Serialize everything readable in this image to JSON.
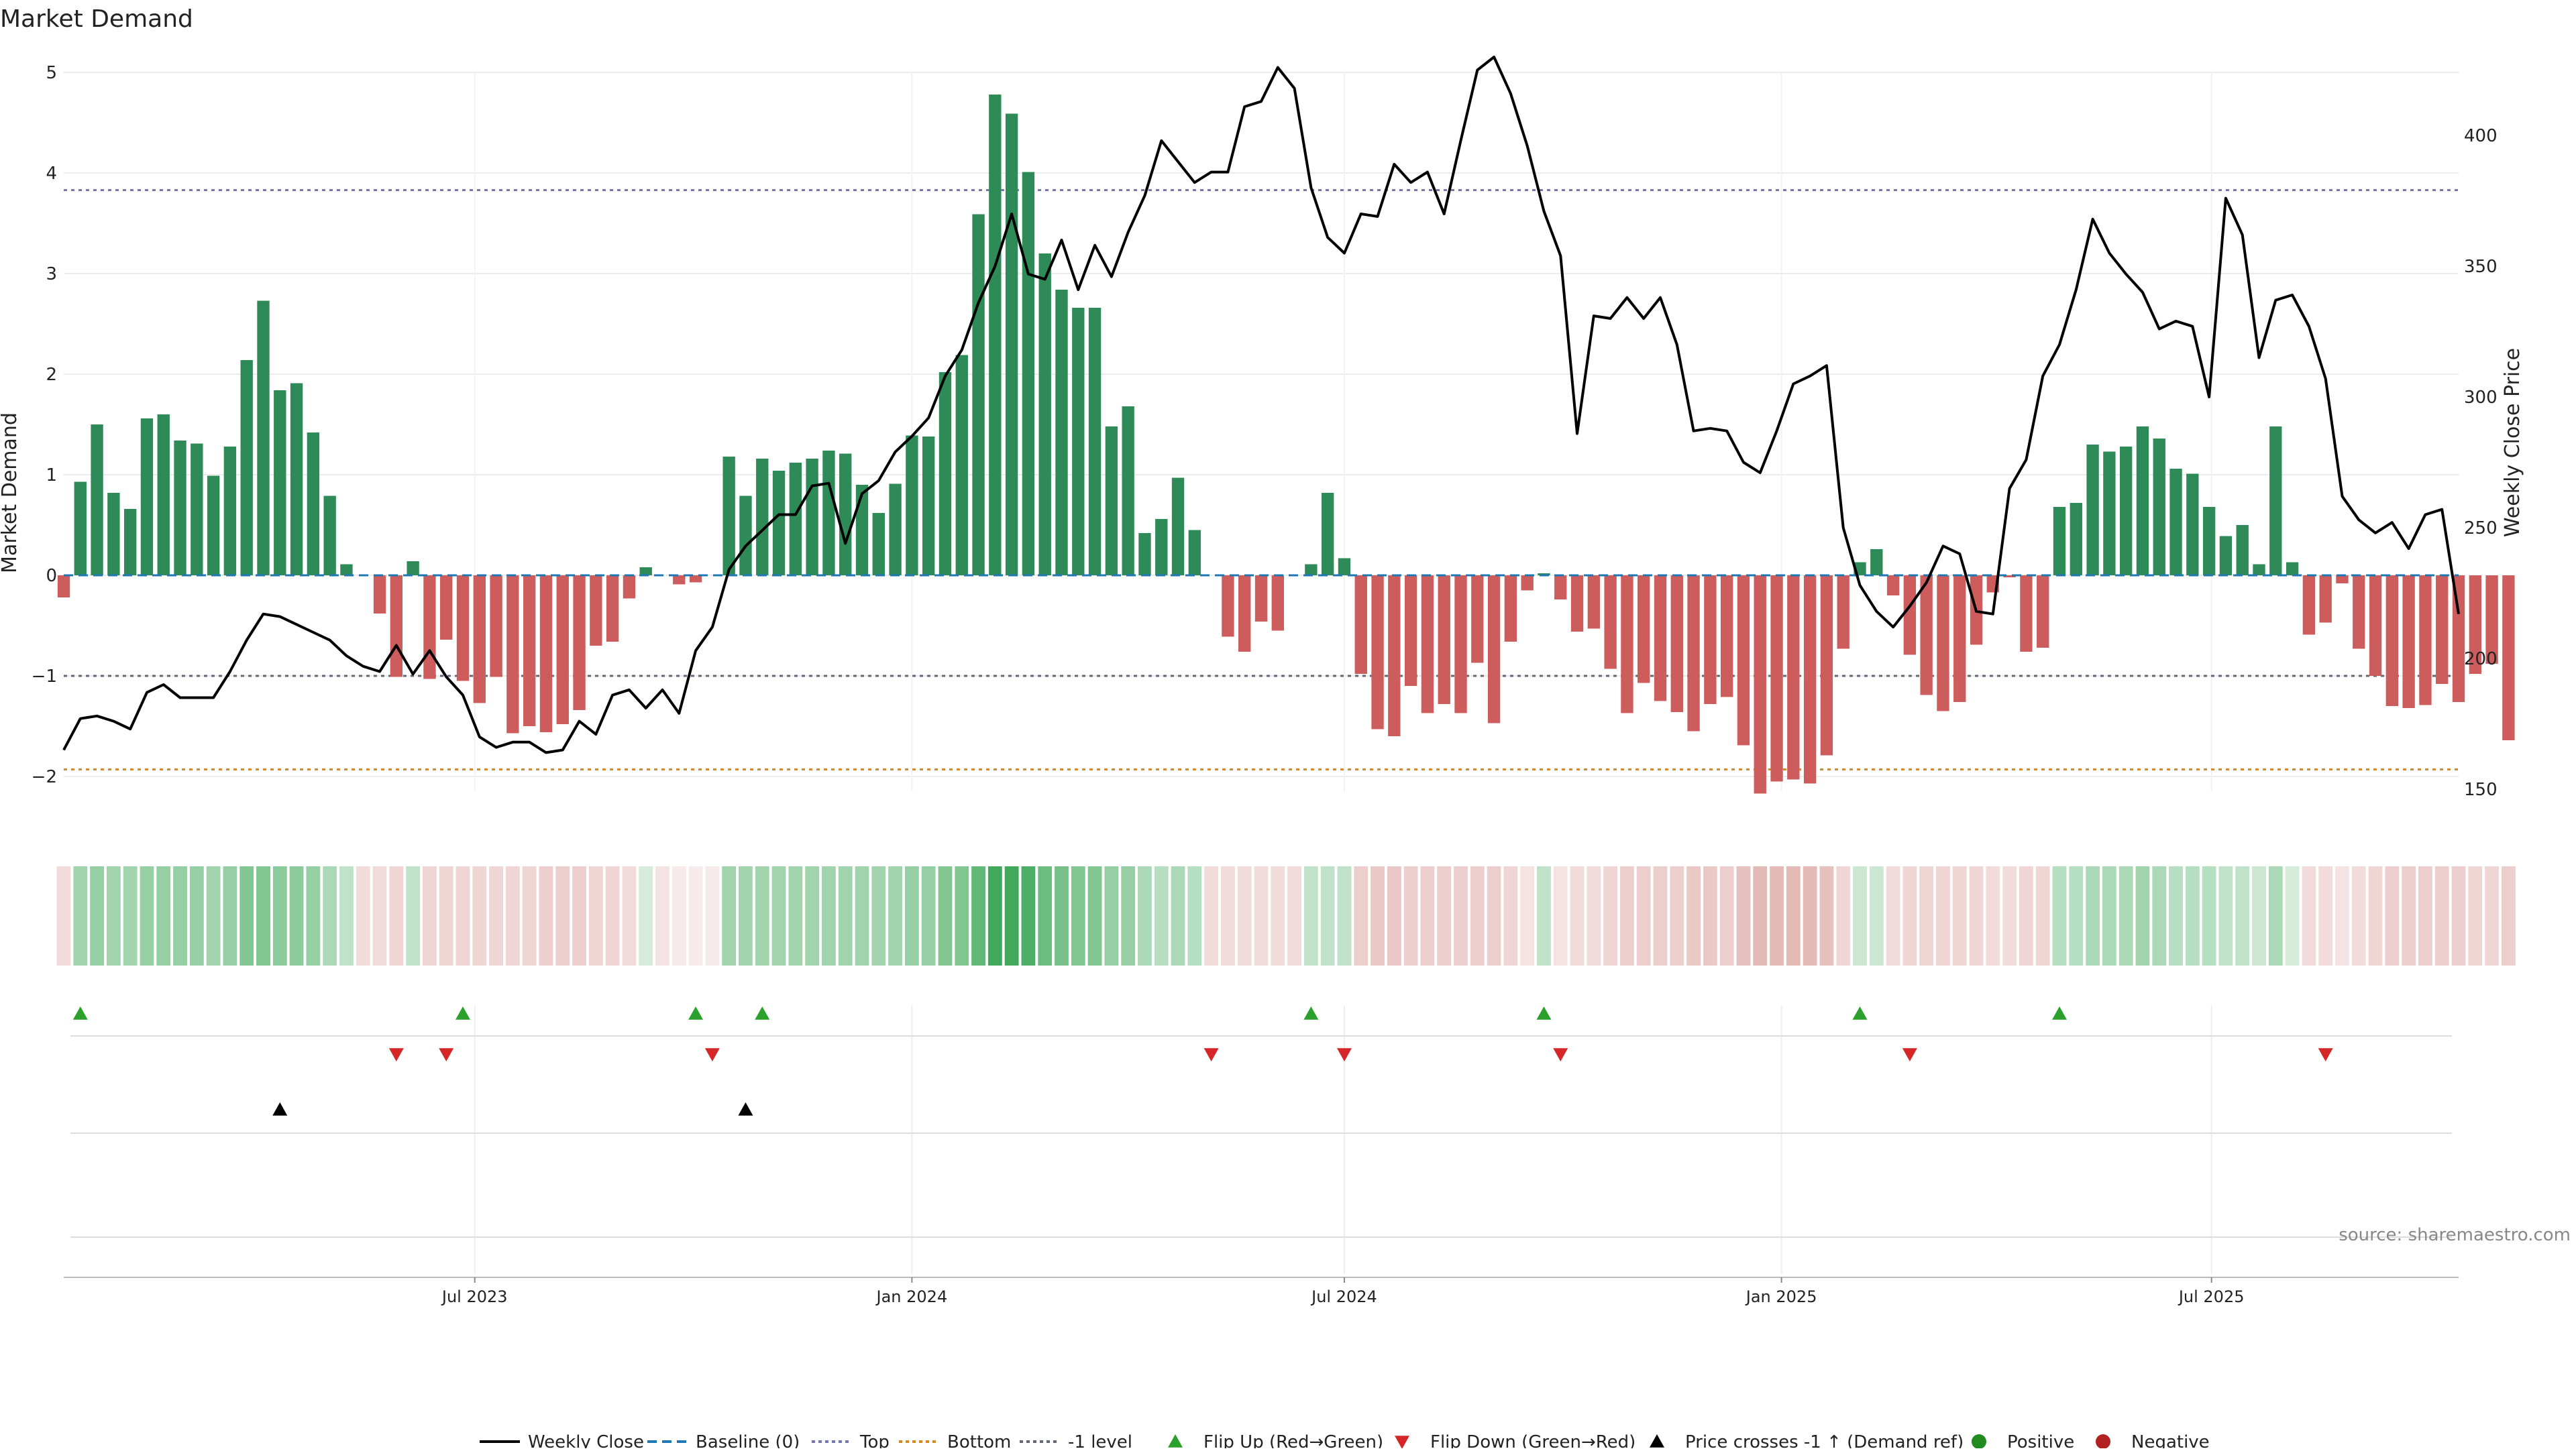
{
  "chart_data": {
    "type": "bar",
    "title": "Market Demand",
    "ylabel": "Market Demand",
    "y2label": "Weekly Close Price",
    "ylim": [
      -2.6,
      5.0
    ],
    "y2lim": [
      142,
      424
    ],
    "yticks": [
      "5",
      "4",
      "3",
      "2",
      "1",
      "0",
      "−1",
      "−2"
    ],
    "y2ticks": [
      "400",
      "350",
      "300",
      "250",
      "200",
      "150"
    ],
    "x_range": [
      "2023-01-09",
      "2025-10-13"
    ],
    "xticks": [
      {
        "date": "2023-07-01",
        "label": "Jul 2023"
      },
      {
        "date": "2024-01-01",
        "label": "Jan 2024"
      },
      {
        "date": "2024-07-01",
        "label": "Jul 2024"
      },
      {
        "date": "2025-01-01",
        "label": "Jan 2025"
      },
      {
        "date": "2025-07-01",
        "label": "Jul 2025"
      }
    ],
    "levels": {
      "top": 3.83,
      "bottom": -1.93,
      "minus_one": -1.0,
      "baseline": 0
    },
    "week_start": "2023-01-09",
    "demand": [
      -0.22,
      0.93,
      1.5,
      0.82,
      0.66,
      1.56,
      1.6,
      1.34,
      1.31,
      0.99,
      1.28,
      2.14,
      2.73,
      1.84,
      1.91,
      1.42,
      0.79,
      0.11,
      0,
      -0.38,
      -1.01,
      0.14,
      -1.03,
      -0.64,
      -1.05,
      -1.27,
      -1.01,
      -1.57,
      -1.5,
      -1.56,
      -1.48,
      -1.34,
      -0.7,
      -0.66,
      -0.23,
      0.08,
      0,
      -0.09,
      -0.07,
      0,
      1.18,
      0.79,
      1.16,
      1.04,
      1.12,
      1.16,
      1.24,
      1.21,
      0.9,
      0.62,
      0.91,
      1.39,
      1.38,
      2.02,
      2.19,
      3.59,
      4.78,
      4.59,
      4.01,
      3.2,
      2.84,
      2.66,
      2.66,
      1.48,
      1.68,
      0.42,
      0.56,
      0.97,
      0.45,
      0,
      -0.61,
      -0.76,
      -0.46,
      -0.55,
      0,
      0.11,
      0.82,
      0.17,
      -0.98,
      -1.53,
      -1.6,
      -1.1,
      -1.37,
      -1.28,
      -1.37,
      -0.87,
      -1.47,
      -0.66,
      -0.15,
      0.02,
      -0.24,
      -0.56,
      -0.53,
      -0.93,
      -1.37,
      -1.07,
      -1.25,
      -1.36,
      -1.55,
      -1.28,
      -1.21,
      -1.69,
      -2.17,
      -2.05,
      -2.03,
      -2.07,
      -1.79,
      -0.73,
      0.13,
      0.26,
      -0.2,
      -0.79,
      -1.19,
      -1.35,
      -1.26,
      -0.69,
      -0.17,
      -0.02,
      -0.76,
      -0.72,
      0.68,
      0.72,
      1.3,
      1.23,
      1.28,
      1.48,
      1.36,
      1.06,
      1.01,
      0.68,
      0.39,
      0.5,
      0.11,
      1.48,
      0.13,
      -0.59,
      -0.47,
      -0.08,
      -0.73,
      -1.0,
      -1.3,
      -1.32,
      -1.29,
      -1.08,
      -1.26,
      -0.98,
      -0.88,
      -1.64
    ],
    "close": [
      165,
      177,
      178,
      176,
      173,
      187,
      190,
      185,
      185,
      185,
      195,
      207,
      217,
      216,
      213,
      210,
      207,
      201,
      197,
      195,
      205,
      194,
      203,
      193,
      186,
      170,
      166,
      168,
      168,
      164,
      165,
      176,
      171,
      186,
      188,
      181,
      188,
      179,
      203,
      212,
      234,
      243,
      249,
      255,
      255,
      266,
      267,
      244,
      263,
      268,
      279,
      285,
      292,
      308,
      318,
      336,
      350,
      370,
      347,
      345,
      360,
      341,
      358,
      346,
      363,
      377,
      398,
      390,
      382,
      386,
      386,
      411,
      413,
      426,
      418,
      380,
      361,
      355,
      370,
      369,
      389,
      382,
      386,
      370,
      398,
      425,
      430,
      416,
      396,
      371,
      354,
      286,
      331,
      330,
      338,
      330,
      338,
      320,
      287,
      288,
      287,
      275,
      271,
      287,
      305,
      308,
      312,
      250,
      228,
      218,
      212,
      220,
      229,
      243,
      240,
      218,
      217,
      265,
      276,
      308,
      320,
      341,
      368,
      355,
      347,
      340,
      326,
      329,
      327,
      300,
      376,
      362,
      315,
      337,
      339,
      327,
      307,
      262,
      253,
      248,
      252,
      242,
      255,
      257,
      217
    ],
    "heat_intensity": [
      0.25,
      0.45,
      0.5,
      0.45,
      0.45,
      0.5,
      0.5,
      0.5,
      0.5,
      0.45,
      0.5,
      0.6,
      0.6,
      0.55,
      0.55,
      0.5,
      0.4,
      0.3,
      0.25,
      0.25,
      0.3,
      0.3,
      0.3,
      0.3,
      0.3,
      0.3,
      0.3,
      0.3,
      0.3,
      0.35,
      0.35,
      0.35,
      0.3,
      0.3,
      0.25,
      0.2,
      0.2,
      0.15,
      0.15,
      0.15,
      0.45,
      0.45,
      0.45,
      0.45,
      0.45,
      0.45,
      0.45,
      0.45,
      0.45,
      0.45,
      0.45,
      0.5,
      0.5,
      0.6,
      0.6,
      0.75,
      0.9,
      0.9,
      0.85,
      0.7,
      0.65,
      0.6,
      0.6,
      0.5,
      0.5,
      0.4,
      0.35,
      0.4,
      0.35,
      0.25,
      0.25,
      0.25,
      0.25,
      0.25,
      0.25,
      0.3,
      0.3,
      0.3,
      0.35,
      0.4,
      0.4,
      0.35,
      0.35,
      0.35,
      0.35,
      0.35,
      0.35,
      0.3,
      0.2,
      0.3,
      0.2,
      0.25,
      0.25,
      0.3,
      0.35,
      0.35,
      0.35,
      0.35,
      0.4,
      0.4,
      0.35,
      0.45,
      0.5,
      0.5,
      0.5,
      0.5,
      0.45,
      0.3,
      0.25,
      0.25,
      0.25,
      0.3,
      0.3,
      0.3,
      0.3,
      0.3,
      0.25,
      0.25,
      0.3,
      0.3,
      0.35,
      0.35,
      0.4,
      0.4,
      0.4,
      0.45,
      0.4,
      0.35,
      0.35,
      0.35,
      0.3,
      0.3,
      0.25,
      0.4,
      0.2,
      0.25,
      0.25,
      0.2,
      0.25,
      0.3,
      0.35,
      0.35,
      0.35,
      0.35,
      0.35,
      0.3,
      0.3,
      0.35
    ],
    "flip_up": [
      "2023-01-16",
      "2023-06-26",
      "2023-10-02",
      "2023-10-30",
      "2024-06-17",
      "2024-09-23",
      "2025-02-03",
      "2025-04-28"
    ],
    "flip_down": [
      "2023-05-29",
      "2023-06-19",
      "2023-10-09",
      "2024-05-06",
      "2024-07-01",
      "2024-09-30",
      "2025-02-24",
      "2025-08-18"
    ],
    "price_cross_minus1_up": [
      "2023-04-10",
      "2023-10-23"
    ],
    "colors": {
      "positive": "#2e8b57",
      "negative": "#cd5c5c",
      "line": "#000000",
      "top": "#7777aa",
      "bottom": "#d08a30",
      "minus_one": "#666677",
      "baseline": "#1f77b4",
      "flip_up": "#2ca02c",
      "flip_down": "#d62728",
      "cross": "#000000",
      "positive_legend": "#228b22",
      "negative_legend": "#b22222",
      "heat_green": "#2ea04a",
      "heat_red": "#c9756f"
    },
    "legend": {
      "position": "bottom-center",
      "items": [
        {
          "label": "Weekly Close",
          "icon": "line-solid"
        },
        {
          "label": "Baseline (0)",
          "icon": "line-dashed"
        },
        {
          "label": "Top",
          "icon": "line-dotted"
        },
        {
          "label": "Bottom",
          "icon": "line-dotted"
        },
        {
          "label": "-1 level",
          "icon": "line-dotted"
        },
        {
          "label": "Flip Up (Red→Green)",
          "icon": "triangle-up"
        },
        {
          "label": "Flip Down (Green→Red)",
          "icon": "triangle-down"
        },
        {
          "label": "Price crosses -1 ↑ (Demand ref)",
          "icon": "triangle-up"
        },
        {
          "label": "Positive",
          "icon": "circle"
        },
        {
          "label": "Negative",
          "icon": "circle"
        }
      ]
    },
    "source": "source: sharemaestro.com",
    "grid": true
  }
}
